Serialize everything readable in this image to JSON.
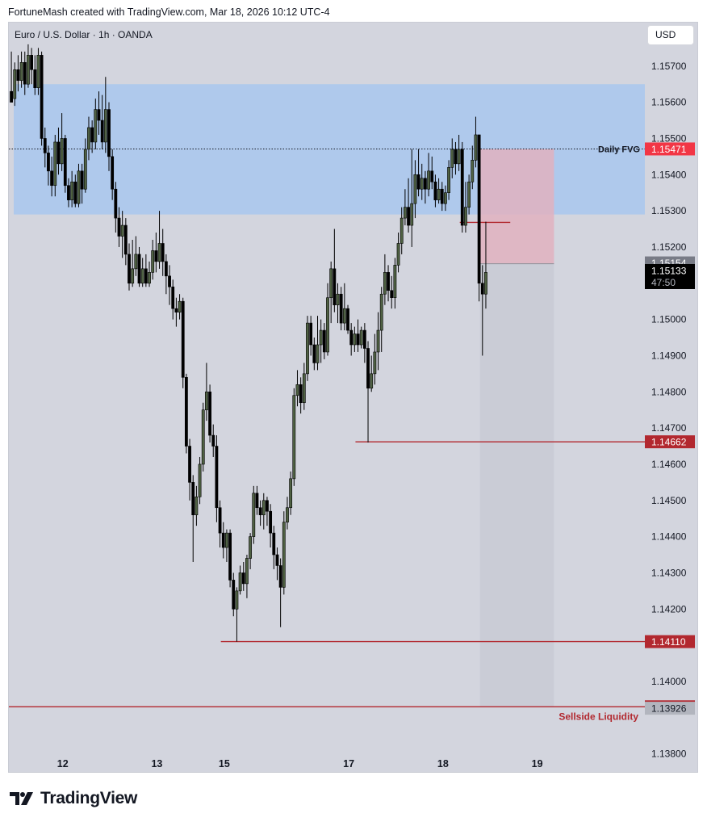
{
  "header": {
    "attribution": "FortuneMash created with TradingView.com, Mar 18, 2026 10:12 UTC-4"
  },
  "symbol": {
    "title": "Euro / U.S. Dollar · 1h · OANDA"
  },
  "toolbar": {
    "currency_label": "USD"
  },
  "footer": {
    "brand": "TradingView"
  },
  "colors": {
    "background": "#d3d5de",
    "fvg_zone": "#afc9ec",
    "candle_up": "#4f6143",
    "candle_down": "#000000",
    "level_line": "#b2282f",
    "level_tag": "#b2282f",
    "short_risk": "#e0b2bf",
    "short_target": "#c9cbd5",
    "price_tag": "#000000",
    "prev_tag": "#787b86"
  },
  "chart_data": {
    "type": "candlestick",
    "title": "Euro / U.S. Dollar · 1h · OANDA",
    "y_axis": {
      "range": [
        1.1375,
        1.1582
      ],
      "ticks": [
        "1.15700",
        "1.15600",
        "1.15500",
        "1.15400",
        "1.15300",
        "1.15200",
        "1.15000",
        "1.14900",
        "1.14800",
        "1.14700",
        "1.14600",
        "1.14500",
        "1.14400",
        "1.14300",
        "1.14200",
        "1.14000",
        "1.13800"
      ]
    },
    "x_axis": {
      "range_hours": [
        0,
        189
      ],
      "ticks": [
        {
          "label": "12",
          "hour": 16
        },
        {
          "label": "13",
          "hour": 44
        },
        {
          "label": "15",
          "hour": 64
        },
        {
          "label": "17",
          "hour": 101
        },
        {
          "label": "18",
          "hour": 129
        },
        {
          "label": "19",
          "hour": 157
        }
      ]
    },
    "zones": [
      {
        "label": "Daily FVG",
        "from": 1.1529,
        "to": 1.1565
      }
    ],
    "levels": [
      {
        "price": 1.15471,
        "label": "1.15471",
        "style": "dotted",
        "from_hour": 0,
        "annotation": "Daily FVG"
      },
      {
        "price": 1.14662,
        "label": "1.14662",
        "style": "solid",
        "from_hour": 103
      },
      {
        "price": 1.1411,
        "label": "1.14110",
        "style": "solid",
        "from_hour": 63
      },
      {
        "price": 1.1393,
        "label": "1.13930",
        "style": "solid",
        "from_hour": 0,
        "annotation": "Sellside Liquidity"
      },
      {
        "price": 1.15268,
        "style": "solid",
        "from_hour": 134,
        "to_hour": 149
      }
    ],
    "position": {
      "type": "short",
      "start_hour": 140,
      "end_hour": 162,
      "entry": 1.15154,
      "stop": 1.15471,
      "target": 1.1393
    },
    "price_tags": [
      {
        "value": "1.15154",
        "kind": "previous"
      },
      {
        "value": "1.15133",
        "kind": "current",
        "countdown": "47:50"
      },
      {
        "value": "1.13926",
        "kind": "low"
      }
    ],
    "candles": [
      [
        1.1563,
        1.156,
        1.1574,
        1.1561
      ],
      [
        1.1561,
        1.1569,
        1.1571,
        1.1559
      ],
      [
        1.1569,
        1.1566,
        1.1573,
        1.1563
      ],
      [
        1.1566,
        1.1571,
        1.1574,
        1.1564
      ],
      [
        1.1571,
        1.1565,
        1.1574,
        1.1562
      ],
      [
        1.1565,
        1.1573,
        1.1576,
        1.1564
      ],
      [
        1.1573,
        1.1569,
        1.1575,
        1.1565
      ],
      [
        1.1569,
        1.1564,
        1.1573,
        1.1562
      ],
      [
        1.1564,
        1.1573,
        1.1575,
        1.1562
      ],
      [
        1.1573,
        1.155,
        1.1574,
        1.1548
      ],
      [
        1.155,
        1.1546,
        1.1553,
        1.1542
      ],
      [
        1.1546,
        1.1541,
        1.1548,
        1.1537
      ],
      [
        1.1541,
        1.1537,
        1.1545,
        1.1534
      ],
      [
        1.1537,
        1.1549,
        1.1551,
        1.1534
      ],
      [
        1.1549,
        1.1543,
        1.1553,
        1.154
      ],
      [
        1.1543,
        1.155,
        1.1557,
        1.1541
      ],
      [
        1.155,
        1.1537,
        1.1551,
        1.1535
      ],
      [
        1.1537,
        1.1533,
        1.1539,
        1.1531
      ],
      [
        1.1533,
        1.1538,
        1.1541,
        1.1531
      ],
      [
        1.1538,
        1.1532,
        1.154,
        1.1531
      ],
      [
        1.1532,
        1.1541,
        1.1543,
        1.1531
      ],
      [
        1.1541,
        1.1536,
        1.1543,
        1.1532
      ],
      [
        1.1536,
        1.1547,
        1.155,
        1.1535
      ],
      [
        1.1547,
        1.1553,
        1.1556,
        1.1544
      ],
      [
        1.1553,
        1.1549,
        1.1555,
        1.1546
      ],
      [
        1.1549,
        1.1558,
        1.1561,
        1.1547
      ],
      [
        1.1558,
        1.1555,
        1.1563,
        1.1551
      ],
      [
        1.1555,
        1.1549,
        1.1562,
        1.1547
      ],
      [
        1.1549,
        1.1558,
        1.1567,
        1.1546
      ],
      [
        1.1558,
        1.1545,
        1.156,
        1.1541
      ],
      [
        1.1545,
        1.1536,
        1.1547,
        1.1533
      ],
      [
        1.1536,
        1.1528,
        1.1538,
        1.1524
      ],
      [
        1.1528,
        1.1523,
        1.1531,
        1.152
      ],
      [
        1.1523,
        1.1526,
        1.153,
        1.1517
      ],
      [
        1.1526,
        1.1518,
        1.1528,
        1.1515
      ],
      [
        1.1518,
        1.151,
        1.1521,
        1.1508
      ],
      [
        1.151,
        1.1514,
        1.1522,
        1.1509
      ],
      [
        1.1514,
        1.1518,
        1.1523,
        1.1512
      ],
      [
        1.1518,
        1.151,
        1.152,
        1.1509
      ],
      [
        1.151,
        1.1514,
        1.1517,
        1.1509
      ],
      [
        1.1514,
        1.151,
        1.1518,
        1.1509
      ],
      [
        1.151,
        1.1513,
        1.1516,
        1.1509
      ],
      [
        1.1513,
        1.1519,
        1.1522,
        1.1511
      ],
      [
        1.1519,
        1.1516,
        1.1524,
        1.1513
      ],
      [
        1.1516,
        1.1521,
        1.153,
        1.1514
      ],
      [
        1.1521,
        1.1516,
        1.1525,
        1.1512
      ],
      [
        1.1516,
        1.1512,
        1.1518,
        1.1507
      ],
      [
        1.1512,
        1.1509,
        1.1515,
        1.1504
      ],
      [
        1.1509,
        1.1503,
        1.1511,
        1.15
      ],
      [
        1.1503,
        1.1502,
        1.1506,
        1.1498
      ],
      [
        1.1502,
        1.1505,
        1.1507,
        1.15
      ],
      [
        1.1505,
        1.1484,
        1.1506,
        1.1481
      ],
      [
        1.1484,
        1.1465,
        1.1485,
        1.1463
      ],
      [
        1.1465,
        1.1455,
        1.1467,
        1.145
      ],
      [
        1.1455,
        1.1446,
        1.1457,
        1.1433
      ],
      [
        1.1446,
        1.1451,
        1.1454,
        1.1443
      ],
      [
        1.1451,
        1.146,
        1.1462,
        1.1449
      ],
      [
        1.146,
        1.1475,
        1.1477,
        1.1458
      ],
      [
        1.1475,
        1.148,
        1.1488,
        1.1472
      ],
      [
        1.148,
        1.1468,
        1.1482,
        1.1466
      ],
      [
        1.1468,
        1.1465,
        1.1471,
        1.1462
      ],
      [
        1.1465,
        1.1448,
        1.1468,
        1.1444
      ],
      [
        1.1448,
        1.1441,
        1.145,
        1.1437
      ],
      [
        1.1441,
        1.1437,
        1.1444,
        1.1434
      ],
      [
        1.1437,
        1.1441,
        1.1442,
        1.1433
      ],
      [
        1.1441,
        1.1428,
        1.1442,
        1.1426
      ],
      [
        1.1428,
        1.142,
        1.143,
        1.1418
      ],
      [
        1.142,
        1.1425,
        1.1426,
        1.1411
      ],
      [
        1.1425,
        1.143,
        1.1432,
        1.1424
      ],
      [
        1.143,
        1.1427,
        1.1433,
        1.1425
      ],
      [
        1.1427,
        1.1434,
        1.1435,
        1.1423
      ],
      [
        1.1434,
        1.144,
        1.1441,
        1.1431
      ],
      [
        1.144,
        1.1452,
        1.1454,
        1.1438
      ],
      [
        1.1452,
        1.1448,
        1.1454,
        1.1446
      ],
      [
        1.1448,
        1.1446,
        1.145,
        1.1443
      ],
      [
        1.1446,
        1.145,
        1.1452,
        1.1442
      ],
      [
        1.145,
        1.1447,
        1.1451,
        1.1443
      ],
      [
        1.1447,
        1.1441,
        1.1449,
        1.1437
      ],
      [
        1.1441,
        1.1435,
        1.1443,
        1.1431
      ],
      [
        1.1435,
        1.1432,
        1.1437,
        1.1428
      ],
      [
        1.1432,
        1.1426,
        1.1434,
        1.1415
      ],
      [
        1.1426,
        1.1444,
        1.1447,
        1.1424
      ],
      [
        1.1444,
        1.1448,
        1.1451,
        1.1442
      ],
      [
        1.1448,
        1.1456,
        1.1458,
        1.1446
      ],
      [
        1.1456,
        1.1479,
        1.1481,
        1.1454
      ],
      [
        1.1479,
        1.1482,
        1.1486,
        1.1476
      ],
      [
        1.1482,
        1.1477,
        1.1484,
        1.1474
      ],
      [
        1.1477,
        1.1485,
        1.1488,
        1.1475
      ],
      [
        1.1485,
        1.1499,
        1.1501,
        1.1483
      ],
      [
        1.1499,
        1.1493,
        1.1501,
        1.149
      ],
      [
        1.1493,
        1.1488,
        1.1495,
        1.1486
      ],
      [
        1.1488,
        1.1493,
        1.1501,
        1.1486
      ],
      [
        1.1493,
        1.1497,
        1.15,
        1.1488
      ],
      [
        1.1497,
        1.1491,
        1.1499,
        1.1489
      ],
      [
        1.1491,
        1.1506,
        1.151,
        1.149
      ],
      [
        1.1506,
        1.1514,
        1.1516,
        1.1499
      ],
      [
        1.1514,
        1.1504,
        1.1525,
        1.1502
      ],
      [
        1.1504,
        1.1507,
        1.151,
        1.1499
      ],
      [
        1.1507,
        1.1499,
        1.1509,
        1.1497
      ],
      [
        1.1499,
        1.1503,
        1.151,
        1.1497
      ],
      [
        1.1503,
        1.1497,
        1.1504,
        1.1496
      ],
      [
        1.1497,
        1.1493,
        1.1499,
        1.149
      ],
      [
        1.1493,
        1.1496,
        1.1498,
        1.1491
      ],
      [
        1.1496,
        1.1493,
        1.15,
        1.1491
      ],
      [
        1.1493,
        1.1497,
        1.1498,
        1.1492
      ],
      [
        1.1497,
        1.1492,
        1.1499,
        1.1488
      ],
      [
        1.1492,
        1.1481,
        1.1494,
        1.1466
      ],
      [
        1.1481,
        1.1485,
        1.149,
        1.148
      ],
      [
        1.1485,
        1.1491,
        1.1496,
        1.1482
      ],
      [
        1.1491,
        1.1497,
        1.1502,
        1.1486
      ],
      [
        1.1497,
        1.1507,
        1.1509,
        1.1491
      ],
      [
        1.1507,
        1.1513,
        1.1518,
        1.1504
      ],
      [
        1.1513,
        1.1508,
        1.1515,
        1.1505
      ],
      [
        1.1508,
        1.1506,
        1.1512,
        1.1503
      ],
      [
        1.1506,
        1.1515,
        1.1517,
        1.1503
      ],
      [
        1.1515,
        1.1521,
        1.1524,
        1.1513
      ],
      [
        1.1521,
        1.1528,
        1.1531,
        1.1518
      ],
      [
        1.1528,
        1.1531,
        1.1536,
        1.1526
      ],
      [
        1.1531,
        1.1526,
        1.1539,
        1.1524
      ],
      [
        1.1526,
        1.1532,
        1.1547,
        1.152
      ],
      [
        1.1532,
        1.154,
        1.1544,
        1.1528
      ],
      [
        1.154,
        1.1536,
        1.1547,
        1.1534
      ],
      [
        1.1536,
        1.1539,
        1.1543,
        1.1533
      ],
      [
        1.1539,
        1.1536,
        1.1541,
        1.1532
      ],
      [
        1.1536,
        1.1541,
        1.1546,
        1.1534
      ],
      [
        1.1541,
        1.1538,
        1.1545,
        1.1536
      ],
      [
        1.1538,
        1.1533,
        1.154,
        1.1531
      ],
      [
        1.1533,
        1.1536,
        1.1539,
        1.1532
      ],
      [
        1.1536,
        1.1532,
        1.1538,
        1.153
      ],
      [
        1.1532,
        1.1535,
        1.1537,
        1.153
      ],
      [
        1.1535,
        1.1542,
        1.1544,
        1.1533
      ],
      [
        1.1542,
        1.1547,
        1.155,
        1.1539
      ],
      [
        1.1547,
        1.1543,
        1.1549,
        1.154
      ],
      [
        1.1543,
        1.1547,
        1.1551,
        1.1541
      ],
      [
        1.1547,
        1.1526,
        1.1549,
        1.1524
      ],
      [
        1.1526,
        1.1531,
        1.1538,
        1.1524
      ],
      [
        1.1531,
        1.1538,
        1.154,
        1.1529
      ],
      [
        1.1538,
        1.1544,
        1.1548,
        1.1536
      ],
      [
        1.1544,
        1.1551,
        1.1556,
        1.1542
      ],
      [
        1.1551,
        1.151,
        1.1551,
        1.1505
      ],
      [
        1.151,
        1.1507,
        1.1515,
        1.149
      ],
      [
        1.1507,
        1.1513,
        1.1527,
        1.1503
      ]
    ]
  }
}
